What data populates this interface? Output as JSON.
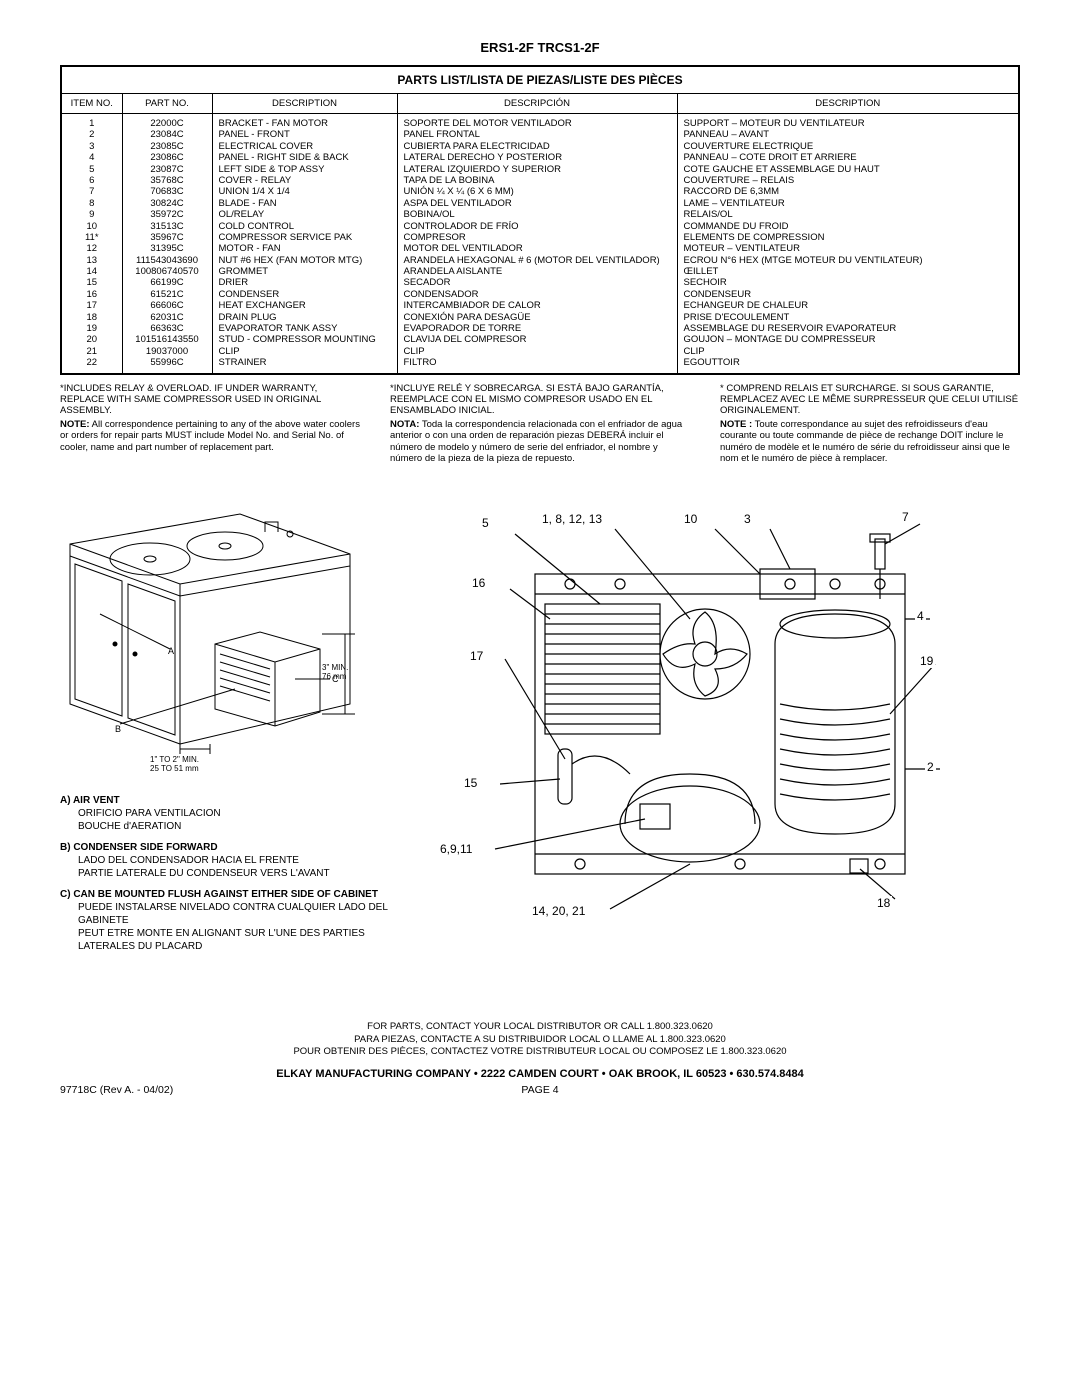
{
  "model_header": "ERS1-2F     TRCS1-2F",
  "table_title": "PARTS LIST/LISTA DE PIEZAS/LISTE DES PIÈCES",
  "columns": [
    "ITEM NO.",
    "PART  NO.",
    "DESCRIPTION",
    "DESCRIPCIÓN",
    "DESCRIPTION"
  ],
  "rows": [
    [
      "1",
      "22000C",
      "BRACKET - FAN MOTOR",
      "SOPORTE DEL MOTOR VENTILADOR",
      "SUPPORT – MOTEUR DU VENTILATEUR"
    ],
    [
      "2",
      "23084C",
      "PANEL - FRONT",
      "PANEL FRONTAL",
      "PANNEAU – AVANT"
    ],
    [
      "3",
      "23085C",
      "ELECTRICAL COVER",
      "CUBIERTA PARA ELECTRICIDAD",
      "COUVERTURE ELECTRIQUE"
    ],
    [
      "4",
      "23086C",
      "PANEL - RIGHT SIDE & BACK",
      "LATERAL DERECHO Y POSTERIOR",
      "PANNEAU – COTE DROIT ET ARRIERE"
    ],
    [
      "5",
      "23087C",
      "LEFT SIDE & TOP ASSY",
      "LATERAL IZQUIERDO Y SUPERIOR",
      "COTE GAUCHE ET ASSEMBLAGE DU HAUT"
    ],
    [
      "6",
      "35768C",
      "COVER - RELAY",
      "TAPA DE LA BOBINA",
      "COUVERTURE – RELAIS"
    ],
    [
      "7",
      "70683C",
      "UNION 1/4 X 1/4",
      "UNIÓN ¼ X ¼ (6 X 6 MM)",
      "RACCORD DE 6,3MM"
    ],
    [
      "8",
      "30824C",
      "BLADE - FAN",
      "ASPA DEL VENTILADOR",
      "LAME – VENTILATEUR"
    ],
    [
      "9",
      "35972C",
      "OL/RELAY",
      "BOBINA/OL",
      "RELAIS/OL"
    ],
    [
      "10",
      "31513C",
      "COLD CONTROL",
      "CONTROLADOR DE FRÍO",
      "COMMANDE DU FROID"
    ],
    [
      "11*",
      "35967C",
      "COMPRESSOR SERVICE PAK",
      "COMPRESOR",
      "ELEMENTS DE COMPRESSION"
    ],
    [
      "12",
      "31395C",
      "MOTOR - FAN",
      "MOTOR DEL VENTILADOR",
      "MOTEUR – VENTILATEUR"
    ],
    [
      "13",
      "111543043690",
      "NUT #6 HEX (FAN MOTOR MTG)",
      "ARANDELA HEXAGONAL # 6 (MOTOR DEL VENTILADOR)",
      "ECROU N°6 HEX (MTGE MOTEUR DU VENTILATEUR)"
    ],
    [
      "14",
      "100806740570",
      "GROMMET",
      "ARANDELA AISLANTE",
      "ŒILLET"
    ],
    [
      "15",
      "66199C",
      "DRIER",
      "SECADOR",
      "SECHOIR"
    ],
    [
      "16",
      "61521C",
      "CONDENSER",
      "CONDENSADOR",
      "CONDENSEUR"
    ],
    [
      "17",
      "66606C",
      "HEAT EXCHANGER",
      "INTERCAMBIADOR DE CALOR",
      "ECHANGEUR DE CHALEUR"
    ],
    [
      "18",
      "62031C",
      "DRAIN PLUG",
      "CONEXIÓN PARA DESAGÜE",
      "PRISE D'ECOULEMENT"
    ],
    [
      "19",
      "66363C",
      "EVAPORATOR TANK ASSY",
      "EVAPORADOR DE TORRE",
      "ASSEMBLAGE DU RESERVOIR EVAPORATEUR"
    ],
    [
      "20",
      "101516143550",
      "STUD - COMPRESSOR MOUNTING",
      "CLAVIJA DEL COMPRESOR",
      "GOUJON – MONTAGE DU COMPRESSEUR"
    ],
    [
      "21",
      "19037000",
      "CLIP",
      "CLIP",
      "CLIP"
    ],
    [
      "22",
      "55996C",
      "STRAINER",
      "FILTRO",
      "EGOUTTOIR"
    ]
  ],
  "notes": {
    "en": {
      "warranty": "*INCLUDES RELAY & OVERLOAD.  IF UNDER WARRANTY, REPLACE WITH SAME COMPRESSOR USED IN ORIGINAL ASSEMBLY.",
      "note_label": "NOTE:",
      "note_text": " All correspondence pertaining to any of the above water coolers or orders for repair parts MUST include Model No. and Serial No. of cooler, name and part number of replacement part."
    },
    "es": {
      "warranty": "*INCLUYE RELÉ Y SOBRECARGA.  SI ESTÁ BAJO GARANTÍA, REEMPLACE CON EL MISMO COMPRESOR USADO EN EL ENSAMBLADO INICIAL.",
      "note_label": "NOTA:",
      "note_text": " Toda la correspondencia relacionada con el enfriador de agua anterior o con una orden de reparación piezas DEBERÁ incluir el número de modelo y número de serie del enfriador, el nombre y número de la pieza de la pieza de repuesto."
    },
    "fr": {
      "warranty": "* COMPREND RELAIS ET SURCHARGE. SI SOUS GARANTIE, REMPLACEZ AVEC LE MÊME SURPRESSEUR QUE CELUI UTILISÉ ORIGINALEMENT.",
      "note_label": "NOTE :",
      "note_text": " Toute correspondance au sujet des refroidisseurs d'eau courante ou toute commande de pièce de rechange DOIT inclure le numéro de modèle et le numéro de série du refroidisseur ainsi que le nom et le numéro de pièce à remplacer."
    }
  },
  "dims": {
    "d1": "3\" MIN.\n76 mm",
    "d2": "1\" TO 2\" MIN.\n25 TO 51 mm"
  },
  "legend": {
    "a": {
      "head": "A)  AIR VENT",
      "es": "ORIFICIO PARA VENTILACION",
      "fr": "BOUCHE d'AERATION"
    },
    "b": {
      "head": "B) CONDENSER SIDE FORWARD",
      "es": "LADO DEL CONDENSADOR HACIA EL FRENTE",
      "fr": "PARTIE LATERALE DU CONDENSEUR VERS L'AVANT"
    },
    "c": {
      "head": "C) CAN BE MOUNTED FLUSH AGAINST EITHER SIDE OF CABINET",
      "es": "PUEDE INSTALARSE NIVELADO CONTRA CUALQUIER LADO DEL GABINETE",
      "fr": "PEUT ETRE MONTE EN ALIGNANT SUR L'UNE DES PARTIES LATERALES DU PLACARD"
    }
  },
  "callouts": {
    "c5": "5",
    "c1_8_12_13": "1, 8, 12, 13",
    "c10": "10",
    "c3": "3",
    "c7": "7",
    "c16": "16",
    "c4": "4",
    "c17": "17",
    "c19": "19",
    "c15": "15",
    "c2": "2",
    "c6_9_11": "6,9,11",
    "c18": "18",
    "c14_20_21": "14, 20, 21"
  },
  "footer": {
    "contact_en": "FOR PARTS, CONTACT YOUR LOCAL DISTRIBUTOR OR CALL 1.800.323.0620",
    "contact_es": "PARA PIEZAS, CONTACTE A SU DISTRIBUIDOR LOCAL O LLAME AL 1.800.323.0620",
    "contact_fr": "POUR OBTENIR DES PIÈCES, CONTACTEZ VOTRE DISTRIBUTEUR LOCAL OU COMPOSEZ LE 1.800.323.0620",
    "company": "ELKAY MANUFACTURING COMPANY • 2222 CAMDEN COURT • OAK BROOK, IL 60523 • 630.574.8484",
    "rev": "97718C (Rev A. - 04/02)",
    "page": "PAGE 4"
  }
}
